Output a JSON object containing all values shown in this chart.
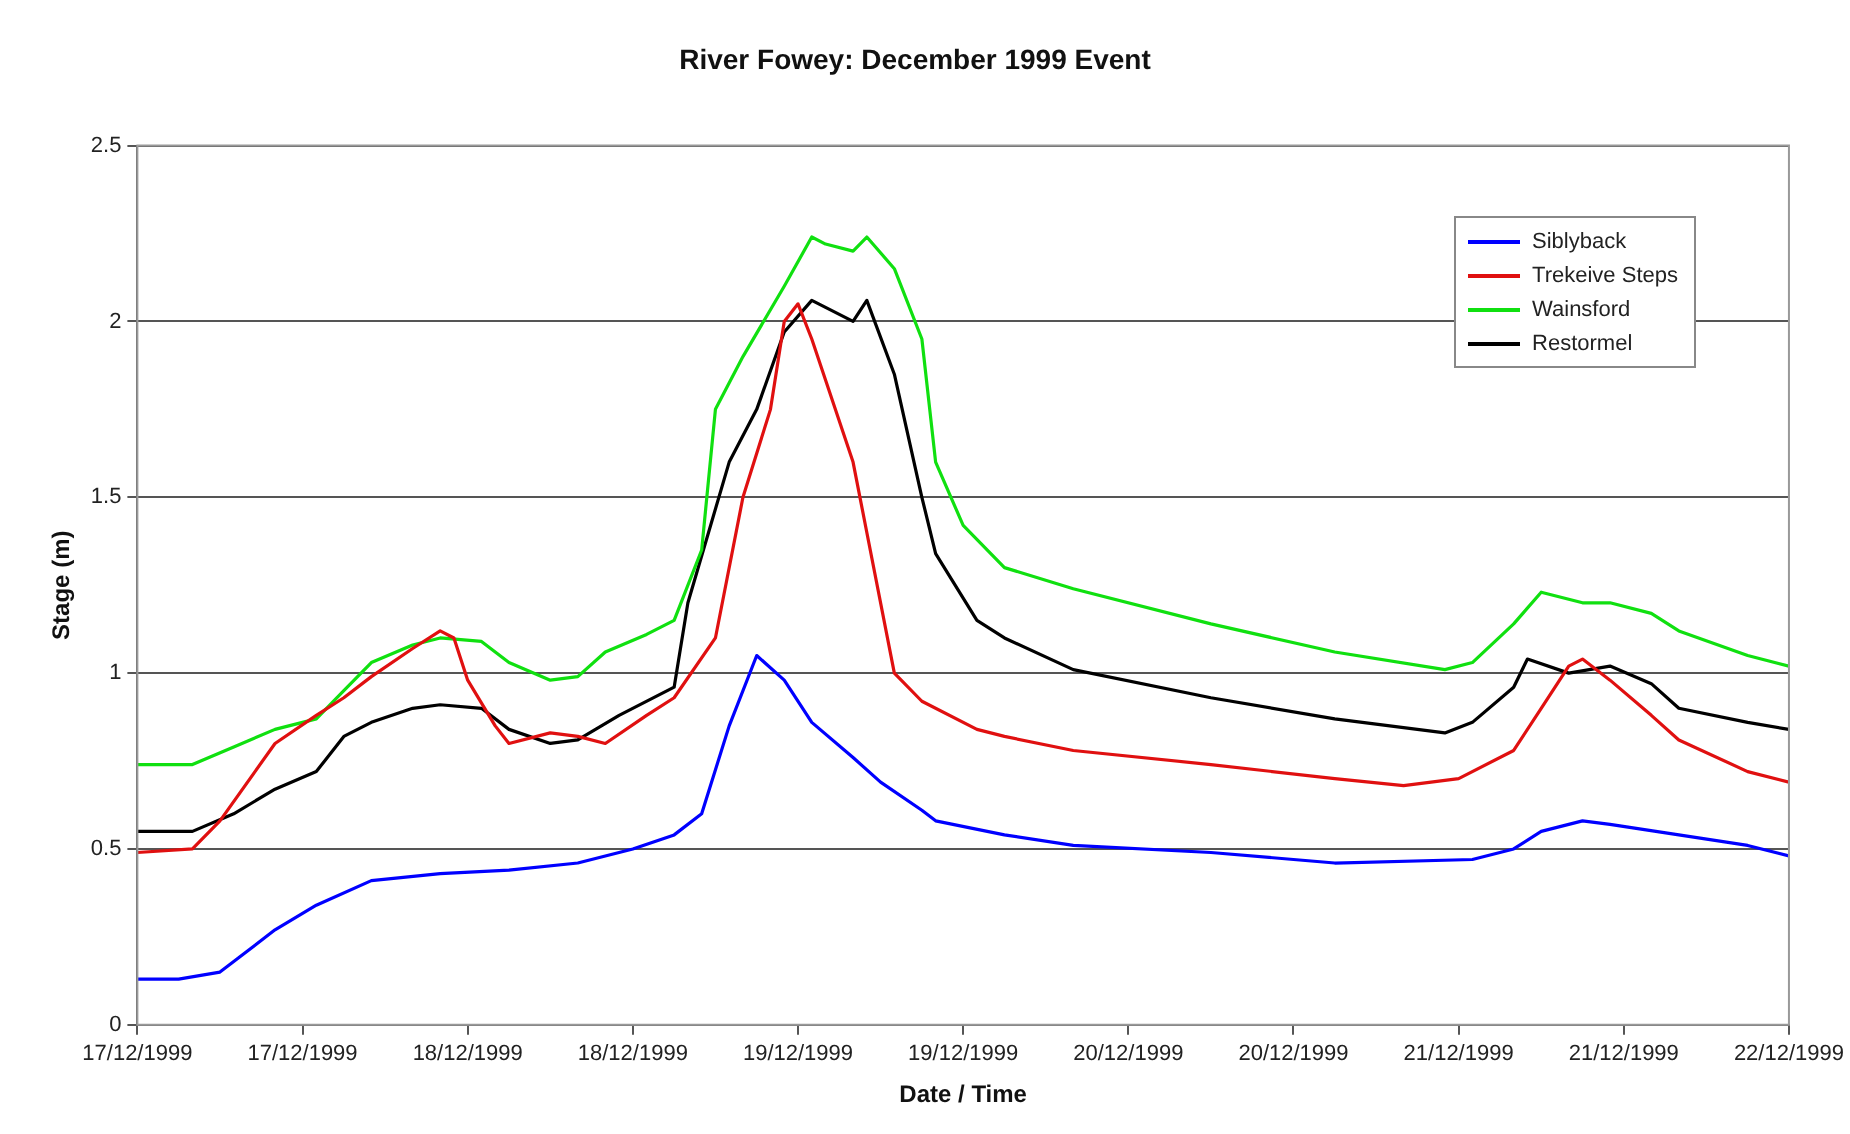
{
  "chart_data": {
    "type": "line",
    "title": "River Fowey: December 1999 Event",
    "xlabel": "Date / Time",
    "ylabel": "Stage (m)",
    "ylim": [
      0,
      2.5
    ],
    "yticks": [
      0,
      0.5,
      1,
      1.5,
      2,
      2.5
    ],
    "xlim": [
      "1999-12-17T00:00",
      "1999-12-22T00:00"
    ],
    "xticks": [
      {
        "value": "1999-12-17T00:00",
        "label": "17/12/1999"
      },
      {
        "value": "1999-12-17T12:00",
        "label": "17/12/1999"
      },
      {
        "value": "1999-12-18T00:00",
        "label": "18/12/1999"
      },
      {
        "value": "1999-12-18T12:00",
        "label": "18/12/1999"
      },
      {
        "value": "1999-12-19T00:00",
        "label": "19/12/1999"
      },
      {
        "value": "1999-12-19T12:00",
        "label": "19/12/1999"
      },
      {
        "value": "1999-12-20T00:00",
        "label": "20/12/1999"
      },
      {
        "value": "1999-12-20T12:00",
        "label": "20/12/1999"
      },
      {
        "value": "1999-12-21T00:00",
        "label": "21/12/1999"
      },
      {
        "value": "1999-12-21T12:00",
        "label": "21/12/1999"
      },
      {
        "value": "1999-12-22T00:00",
        "label": "22/12/1999"
      }
    ],
    "grid": "y",
    "legend": "top right",
    "marker": "none",
    "line_style": "solid",
    "series": [
      {
        "name": "Siblyback",
        "color": "#0000ff",
        "x": [
          "1999-12-17T00:00",
          "1999-12-17T03:00",
          "1999-12-17T06:00",
          "1999-12-17T10:00",
          "1999-12-17T13:00",
          "1999-12-17T17:00",
          "1999-12-17T22:00",
          "1999-12-18T03:00",
          "1999-12-18T08:00",
          "1999-12-18T12:00",
          "1999-12-18T15:00",
          "1999-12-18T17:00",
          "1999-12-18T19:00",
          "1999-12-18T21:00",
          "1999-12-18T23:00",
          "1999-12-19T01:00",
          "1999-12-19T04:00",
          "1999-12-19T06:00",
          "1999-12-19T09:00",
          "1999-12-19T10:00",
          "1999-12-19T15:00",
          "1999-12-19T20:00",
          "1999-12-20T06:00",
          "1999-12-20T15:00",
          "1999-12-21T01:00",
          "1999-12-21T04:00",
          "1999-12-21T06:00",
          "1999-12-21T09:00",
          "1999-12-21T11:00",
          "1999-12-21T16:00",
          "1999-12-21T21:00",
          "1999-12-22T00:00"
        ],
        "values": [
          0.13,
          0.13,
          0.15,
          0.27,
          0.34,
          0.41,
          0.43,
          0.44,
          0.46,
          0.5,
          0.54,
          0.6,
          0.85,
          1.05,
          0.98,
          0.86,
          0.76,
          0.69,
          0.61,
          0.58,
          0.54,
          0.51,
          0.49,
          0.46,
          0.47,
          0.5,
          0.55,
          0.58,
          0.57,
          0.54,
          0.51,
          0.48
        ]
      },
      {
        "name": "Trekeive Steps",
        "color": "#e01010",
        "x": [
          "1999-12-17T00:00",
          "1999-12-17T04:00",
          "1999-12-17T06:00",
          "1999-12-17T10:00",
          "1999-12-17T13:00",
          "1999-12-17T15:00",
          "1999-12-17T17:00",
          "1999-12-17T20:00",
          "1999-12-17T22:00",
          "1999-12-17T23:00",
          "1999-12-18T00:00",
          "1999-12-18T02:00",
          "1999-12-18T03:00",
          "1999-12-18T06:00",
          "1999-12-18T08:00",
          "1999-12-18T10:00",
          "1999-12-18T13:00",
          "1999-12-18T15:00",
          "1999-12-18T18:00",
          "1999-12-18T20:00",
          "1999-12-18T22:00",
          "1999-12-18T23:00",
          "1999-12-19T00:00",
          "1999-12-19T01:00",
          "1999-12-19T04:00",
          "1999-12-19T05:00",
          "1999-12-19T07:00",
          "1999-12-19T09:00",
          "1999-12-19T13:00",
          "1999-12-19T15:00",
          "1999-12-19T20:00",
          "1999-12-20T06:00",
          "1999-12-20T15:00",
          "1999-12-20T20:00",
          "1999-12-21T00:00",
          "1999-12-21T04:00",
          "1999-12-21T06:00",
          "1999-12-21T08:00",
          "1999-12-21T09:00",
          "1999-12-21T11:00",
          "1999-12-21T14:00",
          "1999-12-21T16:00",
          "1999-12-21T21:00",
          "1999-12-22T00:00"
        ],
        "values": [
          0.49,
          0.5,
          0.58,
          0.8,
          0.88,
          0.93,
          0.99,
          1.07,
          1.12,
          1.1,
          0.98,
          0.85,
          0.8,
          0.83,
          0.82,
          0.8,
          0.88,
          0.93,
          1.1,
          1.5,
          1.75,
          2.0,
          2.05,
          1.95,
          1.6,
          1.4,
          1.0,
          0.92,
          0.84,
          0.82,
          0.78,
          0.74,
          0.7,
          0.68,
          0.7,
          0.78,
          0.9,
          1.02,
          1.04,
          0.98,
          0.88,
          0.81,
          0.72,
          0.69
        ]
      },
      {
        "name": "Wainsford",
        "color": "#10e010",
        "x": [
          "1999-12-17T00:00",
          "1999-12-17T04:00",
          "1999-12-17T07:00",
          "1999-12-17T10:00",
          "1999-12-17T13:00",
          "1999-12-17T15:00",
          "1999-12-17T17:00",
          "1999-12-17T20:00",
          "1999-12-17T22:00",
          "1999-12-18T01:00",
          "1999-12-18T03:00",
          "1999-12-18T06:00",
          "1999-12-18T08:00",
          "1999-12-18T10:00",
          "1999-12-18T13:00",
          "1999-12-18T15:00",
          "1999-12-18T17:00",
          "1999-12-18T18:00",
          "1999-12-18T20:00",
          "1999-12-18T23:00",
          "1999-12-19T01:00",
          "1999-12-19T02:00",
          "1999-12-19T04:00",
          "1999-12-19T05:00",
          "1999-12-19T07:00",
          "1999-12-19T09:00",
          "1999-12-19T10:00",
          "1999-12-19T12:00",
          "1999-12-19T15:00",
          "1999-12-19T20:00",
          "1999-12-20T06:00",
          "1999-12-20T15:00",
          "1999-12-20T23:00",
          "1999-12-21T01:00",
          "1999-12-21T04:00",
          "1999-12-21T06:00",
          "1999-12-21T09:00",
          "1999-12-21T11:00",
          "1999-12-21T14:00",
          "1999-12-21T16:00",
          "1999-12-21T21:00",
          "1999-12-22T00:00"
        ],
        "values": [
          0.74,
          0.74,
          0.79,
          0.84,
          0.87,
          0.95,
          1.03,
          1.08,
          1.1,
          1.09,
          1.03,
          0.98,
          0.99,
          1.06,
          1.11,
          1.15,
          1.35,
          1.75,
          1.9,
          2.1,
          2.24,
          2.22,
          2.2,
          2.24,
          2.15,
          1.95,
          1.6,
          1.42,
          1.3,
          1.24,
          1.14,
          1.06,
          1.01,
          1.03,
          1.14,
          1.23,
          1.2,
          1.2,
          1.17,
          1.12,
          1.05,
          1.02
        ]
      },
      {
        "name": "Restormel",
        "color": "#000000",
        "x": [
          "1999-12-17T00:00",
          "1999-12-17T04:00",
          "1999-12-17T07:00",
          "1999-12-17T10:00",
          "1999-12-17T13:00",
          "1999-12-17T15:00",
          "1999-12-17T17:00",
          "1999-12-17T20:00",
          "1999-12-17T22:00",
          "1999-12-18T01:00",
          "1999-12-18T03:00",
          "1999-12-18T06:00",
          "1999-12-18T08:00",
          "1999-12-18T11:00",
          "1999-12-18T15:00",
          "1999-12-18T16:00",
          "1999-12-18T19:00",
          "1999-12-18T21:00",
          "1999-12-18T23:00",
          "1999-12-19T01:00",
          "1999-12-19T02:00",
          "1999-12-19T04:00",
          "1999-12-19T05:00",
          "1999-12-19T07:00",
          "1999-12-19T09:00",
          "1999-12-19T10:00",
          "1999-12-19T13:00",
          "1999-12-19T15:00",
          "1999-12-19T20:00",
          "1999-12-20T06:00",
          "1999-12-20T15:00",
          "1999-12-20T23:00",
          "1999-12-21T01:00",
          "1999-12-21T04:00",
          "1999-12-21T05:00",
          "1999-12-21T08:00",
          "1999-12-21T11:00",
          "1999-12-21T14:00",
          "1999-12-21T16:00",
          "1999-12-21T21:00",
          "1999-12-22T00:00"
        ],
        "values": [
          0.55,
          0.55,
          0.6,
          0.67,
          0.72,
          0.82,
          0.86,
          0.9,
          0.91,
          0.9,
          0.84,
          0.8,
          0.81,
          0.88,
          0.96,
          1.2,
          1.6,
          1.75,
          1.97,
          2.06,
          2.04,
          2.0,
          2.06,
          1.85,
          1.5,
          1.34,
          1.15,
          1.1,
          1.01,
          0.93,
          0.87,
          0.83,
          0.86,
          0.96,
          1.04,
          1.0,
          1.02,
          0.97,
          0.9,
          0.86,
          0.84
        ]
      }
    ]
  }
}
